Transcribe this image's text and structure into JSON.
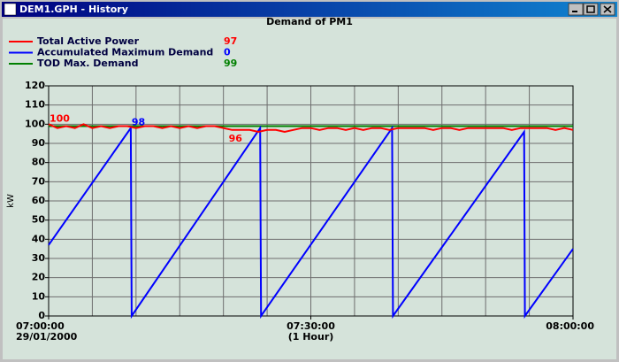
{
  "window": {
    "title": "DEM1.GPH - History"
  },
  "chart_data": {
    "type": "line",
    "title": "Demand of PM1",
    "y_label": "kW",
    "x_date": "29/01/2000",
    "x_span": "(1 Hour)",
    "xlim": [
      0,
      60
    ],
    "ylim": [
      0,
      120
    ],
    "yticks": [
      0,
      10,
      20,
      30,
      40,
      50,
      60,
      70,
      80,
      90,
      100,
      110,
      120
    ],
    "xticks": [
      {
        "value": 0,
        "label": "07:00:00"
      },
      {
        "value": 30,
        "label": "07:30:00"
      },
      {
        "value": 60,
        "label": "08:00:00"
      }
    ],
    "xgrid": [
      0,
      5,
      10,
      15,
      20,
      25,
      30,
      35,
      40,
      45,
      50,
      55,
      60
    ],
    "grid": true,
    "series": [
      {
        "name": "Total Active Power",
        "color": "#ff0000",
        "current": 97,
        "x": [
          0,
          1,
          2,
          3,
          4,
          5,
          6,
          7,
          8,
          9,
          10,
          11,
          12,
          13,
          14,
          15,
          16,
          17,
          18,
          19,
          20,
          21,
          22,
          23,
          24,
          25,
          26,
          27,
          28,
          29,
          30,
          31,
          32,
          33,
          34,
          35,
          36,
          37,
          38,
          39,
          40,
          41,
          42,
          43,
          44,
          45,
          46,
          47,
          48,
          49,
          50,
          51,
          52,
          53,
          54,
          55,
          56,
          57,
          58,
          59,
          60
        ],
        "values": [
          100,
          98,
          99,
          98,
          100,
          98,
          99,
          98,
          99,
          99,
          98,
          99,
          99,
          98,
          99,
          98,
          99,
          98,
          99,
          99,
          98,
          97,
          97,
          97,
          96,
          97,
          97,
          96,
          97,
          98,
          98,
          97,
          98,
          98,
          97,
          98,
          97,
          98,
          98,
          97,
          98,
          98,
          98,
          98,
          97,
          98,
          98,
          97,
          98,
          98,
          98,
          98,
          98,
          97,
          98,
          98,
          98,
          98,
          97,
          98,
          97
        ]
      },
      {
        "name": "Accumulated Maximum Demand",
        "color": "#0000ff",
        "current": 0,
        "x": [
          0,
          9.4,
          9.5,
          24.2,
          24.3,
          39.3,
          39.4,
          54.4,
          54.5,
          60
        ],
        "values": [
          37,
          98,
          0,
          98,
          0,
          98,
          0,
          96,
          0,
          35
        ]
      },
      {
        "name": "TOD Max. Demand",
        "color": "#008000",
        "current": 99,
        "x": [
          0,
          60
        ],
        "values": [
          99,
          99
        ]
      }
    ],
    "annotations": [
      {
        "x": 0,
        "value": 100,
        "color": "#ff0000"
      },
      {
        "x": 9.4,
        "value": 98,
        "color": "#0000ff"
      },
      {
        "x": 20.5,
        "value": 96,
        "color": "#ff0000"
      }
    ]
  }
}
